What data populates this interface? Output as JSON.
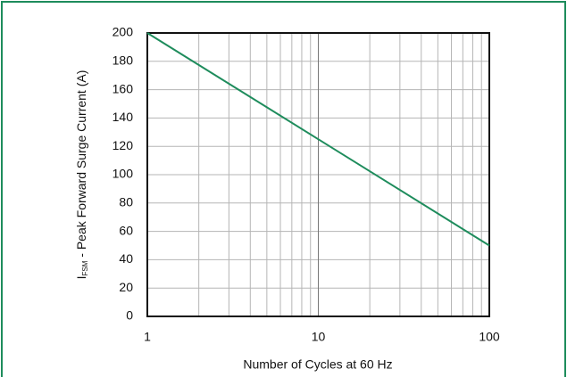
{
  "chart_data": {
    "type": "line",
    "xlabel": "Number of Cycles at 60 Hz",
    "ylabel": {
      "symbol": "I",
      "subscript": "FSM",
      "text": " - Peak Forward Surge Current (A)"
    },
    "x": [
      1,
      100
    ],
    "series": [
      {
        "color": "#1e8c5c",
        "values": [
          200,
          50
        ]
      }
    ],
    "xlog": true,
    "xlim": [
      1,
      100
    ],
    "xticks": [
      1,
      10,
      100
    ],
    "x_minor_ticks": [
      2,
      3,
      4,
      5,
      6,
      7,
      8,
      9,
      20,
      30,
      40,
      50,
      60,
      70,
      80,
      90
    ],
    "ylim": [
      0,
      200
    ],
    "yticks": [
      0,
      20,
      40,
      60,
      80,
      100,
      120,
      140,
      160,
      180,
      200
    ],
    "grid": true,
    "frame_color": "#1e8c5c"
  }
}
